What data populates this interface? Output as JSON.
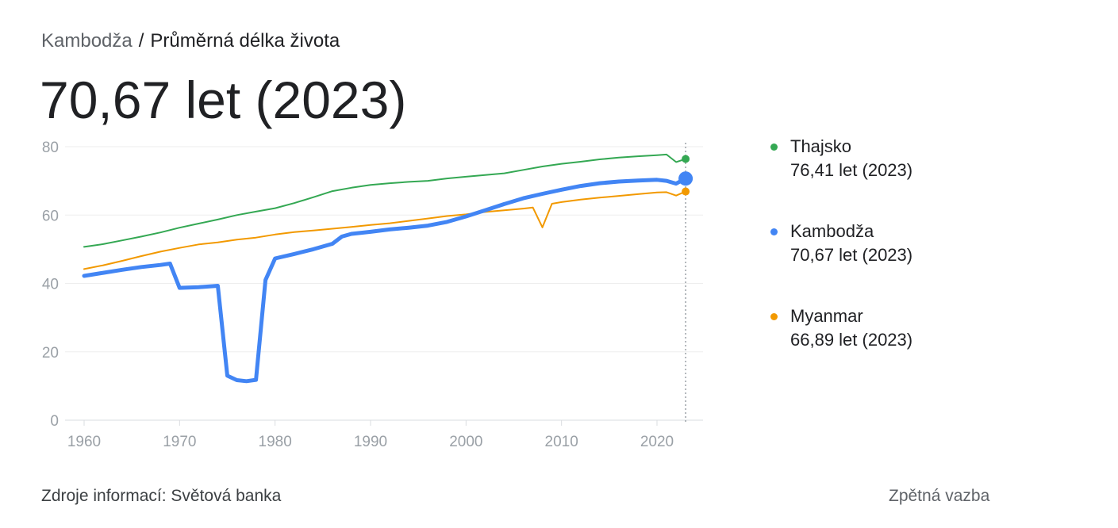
{
  "header": {
    "country": "Kambodža",
    "separator": "/",
    "metric": "Průměrná délka života",
    "headline": "70,67 let (2023)"
  },
  "legend": [
    {
      "name": "Thajsko",
      "value": "76,41 let (2023)",
      "color": "#34a853"
    },
    {
      "name": "Kambodža",
      "value": "70,67 let (2023)",
      "color": "#4285f4"
    },
    {
      "name": "Myanmar",
      "value": "66,89 let (2023)",
      "color": "#f29900"
    }
  ],
  "footer": {
    "source": "Zdroje informací: Světová banka",
    "feedback": "Zpětná vazba"
  },
  "chart_data": {
    "type": "line",
    "title": "",
    "xlabel": "",
    "ylabel": "",
    "xlim": [
      1960,
      2023
    ],
    "ylim": [
      0,
      80
    ],
    "y_ticks": [
      0,
      20,
      40,
      60,
      80
    ],
    "x_ticks": [
      1960,
      1970,
      1980,
      1990,
      2000,
      2010,
      2020
    ],
    "grid": true,
    "legend_placement": "right",
    "highlight_x": 2023,
    "series": [
      {
        "name": "Thajsko",
        "color": "#34a853",
        "points": [
          [
            1960,
            50.7
          ],
          [
            1962,
            51.5
          ],
          [
            1964,
            52.6
          ],
          [
            1966,
            53.7
          ],
          [
            1968,
            54.9
          ],
          [
            1970,
            56.3
          ],
          [
            1972,
            57.5
          ],
          [
            1974,
            58.7
          ],
          [
            1976,
            60.0
          ],
          [
            1978,
            61.0
          ],
          [
            1980,
            62.0
          ],
          [
            1982,
            63.5
          ],
          [
            1984,
            65.2
          ],
          [
            1986,
            67.0
          ],
          [
            1988,
            68.0
          ],
          [
            1990,
            68.8
          ],
          [
            1992,
            69.3
          ],
          [
            1994,
            69.7
          ],
          [
            1996,
            70.0
          ],
          [
            1998,
            70.7
          ],
          [
            2000,
            71.2
          ],
          [
            2002,
            71.7
          ],
          [
            2004,
            72.2
          ],
          [
            2006,
            73.2
          ],
          [
            2008,
            74.2
          ],
          [
            2010,
            75.0
          ],
          [
            2012,
            75.6
          ],
          [
            2014,
            76.3
          ],
          [
            2016,
            76.8
          ],
          [
            2018,
            77.2
          ],
          [
            2020,
            77.5
          ],
          [
            2021,
            77.7
          ],
          [
            2022,
            75.5
          ],
          [
            2023,
            76.41
          ]
        ]
      },
      {
        "name": "Kambodža",
        "color": "#4285f4",
        "points": [
          [
            1960,
            42.2
          ],
          [
            1962,
            43.1
          ],
          [
            1964,
            44.0
          ],
          [
            1966,
            44.8
          ],
          [
            1968,
            45.4
          ],
          [
            1969,
            45.8
          ],
          [
            1970,
            38.7
          ],
          [
            1972,
            38.9
          ],
          [
            1974,
            39.3
          ],
          [
            1975,
            13.0
          ],
          [
            1976,
            11.7
          ],
          [
            1977,
            11.4
          ],
          [
            1978,
            11.8
          ],
          [
            1979,
            41.0
          ],
          [
            1980,
            47.3
          ],
          [
            1982,
            48.6
          ],
          [
            1984,
            50.0
          ],
          [
            1986,
            51.6
          ],
          [
            1987,
            53.7
          ],
          [
            1988,
            54.5
          ],
          [
            1990,
            55.1
          ],
          [
            1992,
            55.8
          ],
          [
            1994,
            56.3
          ],
          [
            1996,
            56.9
          ],
          [
            1998,
            58.0
          ],
          [
            2000,
            59.6
          ],
          [
            2002,
            61.4
          ],
          [
            2004,
            63.2
          ],
          [
            2006,
            64.9
          ],
          [
            2008,
            66.2
          ],
          [
            2010,
            67.4
          ],
          [
            2012,
            68.5
          ],
          [
            2014,
            69.3
          ],
          [
            2016,
            69.8
          ],
          [
            2018,
            70.1
          ],
          [
            2020,
            70.3
          ],
          [
            2021,
            70.0
          ],
          [
            2022,
            69.2
          ],
          [
            2023,
            70.67
          ]
        ]
      },
      {
        "name": "Myanmar",
        "color": "#f29900",
        "points": [
          [
            1960,
            44.2
          ],
          [
            1962,
            45.3
          ],
          [
            1964,
            46.6
          ],
          [
            1966,
            48.0
          ],
          [
            1968,
            49.3
          ],
          [
            1970,
            50.4
          ],
          [
            1972,
            51.4
          ],
          [
            1974,
            52.0
          ],
          [
            1976,
            52.8
          ],
          [
            1978,
            53.4
          ],
          [
            1980,
            54.3
          ],
          [
            1982,
            55.0
          ],
          [
            1984,
            55.5
          ],
          [
            1986,
            56.0
          ],
          [
            1988,
            56.5
          ],
          [
            1990,
            57.1
          ],
          [
            1992,
            57.6
          ],
          [
            1994,
            58.3
          ],
          [
            1996,
            59.0
          ],
          [
            1998,
            59.7
          ],
          [
            2000,
            60.2
          ],
          [
            2002,
            60.9
          ],
          [
            2004,
            61.4
          ],
          [
            2006,
            61.9
          ],
          [
            2007,
            62.2
          ],
          [
            2008,
            56.4
          ],
          [
            2009,
            63.3
          ],
          [
            2010,
            63.8
          ],
          [
            2012,
            64.5
          ],
          [
            2014,
            65.1
          ],
          [
            2016,
            65.6
          ],
          [
            2018,
            66.1
          ],
          [
            2020,
            66.6
          ],
          [
            2021,
            66.7
          ],
          [
            2022,
            65.7
          ],
          [
            2023,
            66.89
          ]
        ]
      }
    ]
  }
}
